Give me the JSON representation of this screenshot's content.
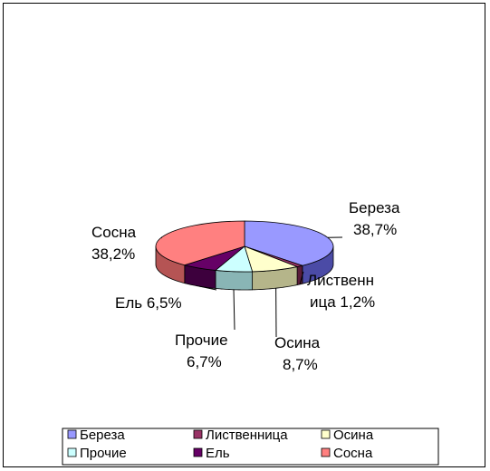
{
  "chart_data": {
    "type": "pie",
    "title": "",
    "slices": [
      {
        "name": "Береза",
        "value": 38.7,
        "color": "#9999ff",
        "side": "#4b4ba6",
        "label_name": "Береза",
        "label_value": "38,7%"
      },
      {
        "name": "Лиственница",
        "value": 1.2,
        "color": "#993366",
        "side": "#5a1c3a",
        "label_name": "Лиственн",
        "label_name2": "ица 1,2%",
        "label_value": ""
      },
      {
        "name": "Осина",
        "value": 8.7,
        "color": "#ffffcc",
        "side": "#b5b58a",
        "label_name": "Осина",
        "label_value": "8,7%"
      },
      {
        "name": "Прочие",
        "value": 6.7,
        "color": "#ccffff",
        "side": "#89b5b5",
        "label_name": "Прочие",
        "label_value": "6,7%"
      },
      {
        "name": "Ель",
        "value": 6.5,
        "color": "#660066",
        "side": "#3d003d",
        "label_name": "Ель 6,5%",
        "label_value": ""
      },
      {
        "name": "Сосна",
        "value": 38.2,
        "color": "#ff8080",
        "side": "#b55454",
        "label_name": "Сосна",
        "label_value": "38,2%"
      }
    ],
    "legend": {
      "placement": "bottom",
      "rows": [
        [
          "Береза",
          "Лиственница",
          "Осина"
        ],
        [
          "Прочие",
          "Ель",
          "Сосна"
        ]
      ]
    }
  }
}
